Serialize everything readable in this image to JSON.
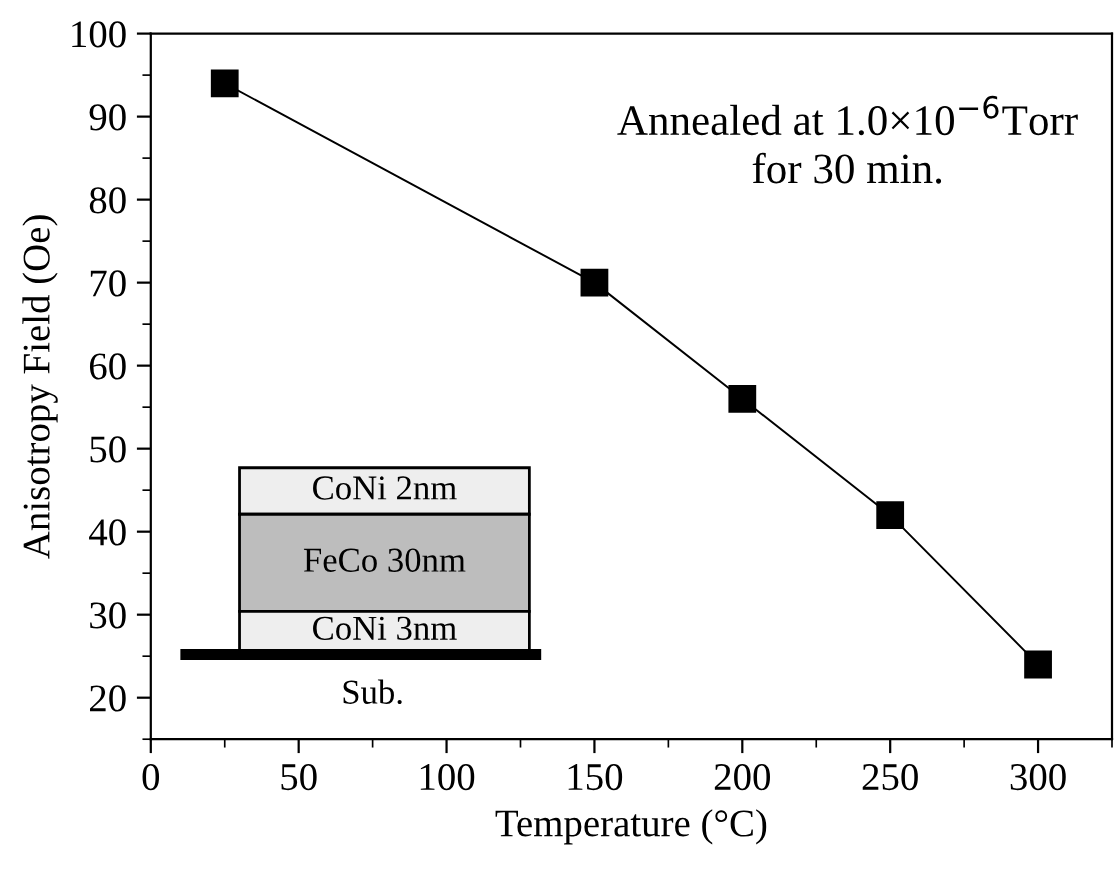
{
  "chart_data": {
    "type": "line",
    "xlabel": "Temperature (°C)",
    "ylabel": "Anisotropy Field (Oe)",
    "x": [
      25,
      150,
      200,
      250,
      300
    ],
    "series": [
      {
        "color": "#000000",
        "values": [
          94,
          70,
          56,
          42,
          24
        ]
      }
    ],
    "marker": "square",
    "line_style": "solid",
    "xlim": [
      0,
      325
    ],
    "ylim": [
      15,
      100
    ],
    "xticks": [
      0,
      50,
      100,
      150,
      200,
      250,
      300
    ],
    "yticks": [
      20,
      30,
      40,
      50,
      60,
      70,
      80,
      90,
      100
    ],
    "grid": false,
    "legend": false,
    "annotations": [
      "Annealed at 1.0×10$^{−6}$Torr\nfor 30 min.",
      "CoNi 2nm",
      "FeCo 30nm",
      "CoNi 3nm",
      "Sub."
    ]
  }
}
